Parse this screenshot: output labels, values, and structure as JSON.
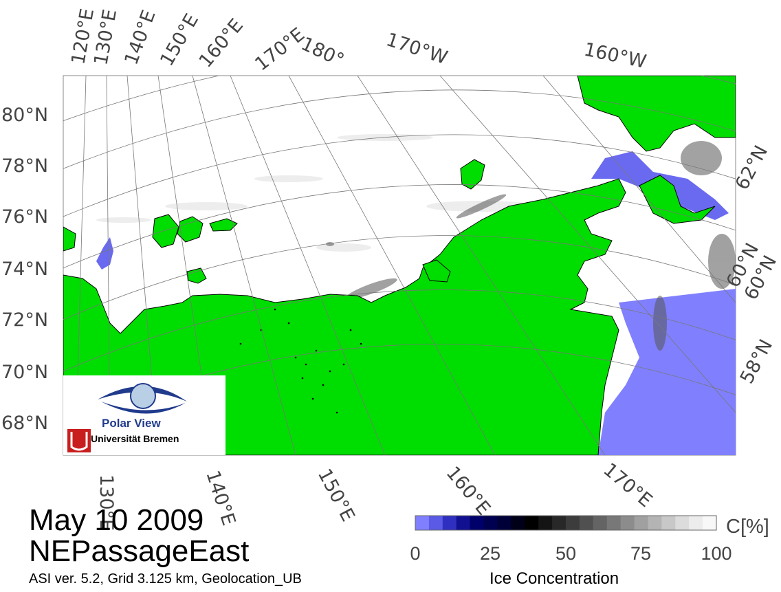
{
  "map": {
    "title_date": "May 10 2009",
    "title_name": "NEPassageEast",
    "info_line": "ASI ver. 5.2,  Grid 3.125 km, Geolocation_UB",
    "top_lon_labels": [
      "120°E",
      "130°E",
      "140°E",
      "150°E",
      "160°E",
      "170°E",
      "180°",
      "170°W",
      "160°W"
    ],
    "left_lat_labels": [
      "80°N",
      "78°N",
      "76°N",
      "74°N",
      "72°N",
      "70°N",
      "68°N"
    ],
    "right_lat_labels": [
      "62°N",
      "60°N",
      "58°N"
    ],
    "right_lat_inner_label": "60°N",
    "bottom_lon_labels": [
      "130°E",
      "140°E",
      "150°E",
      "160°E",
      "170°E"
    ],
    "colors": {
      "land": "#00dd00",
      "open_water": "#8080ff",
      "ice_full": "#ffffff",
      "coast": "#000000"
    }
  },
  "logo": {
    "line1": "Polar View",
    "line2": "Universität Bremen"
  },
  "colorbar": {
    "unit": "C[%]",
    "title": "Ice Concentration",
    "tick_labels": [
      "0",
      "25",
      "50",
      "75",
      "100"
    ],
    "colors": [
      "#8080ff",
      "#5a5ae6",
      "#3030c0",
      "#101090",
      "#00006a",
      "#000050",
      "#000038",
      "#000018",
      "#000000",
      "#141414",
      "#282828",
      "#3c3c3c",
      "#505050",
      "#646464",
      "#787878",
      "#8c8c8c",
      "#a0a0a0",
      "#b4b4b4",
      "#c8c8c8",
      "#dcdcdc",
      "#ececec",
      "#f8f8f8"
    ]
  }
}
